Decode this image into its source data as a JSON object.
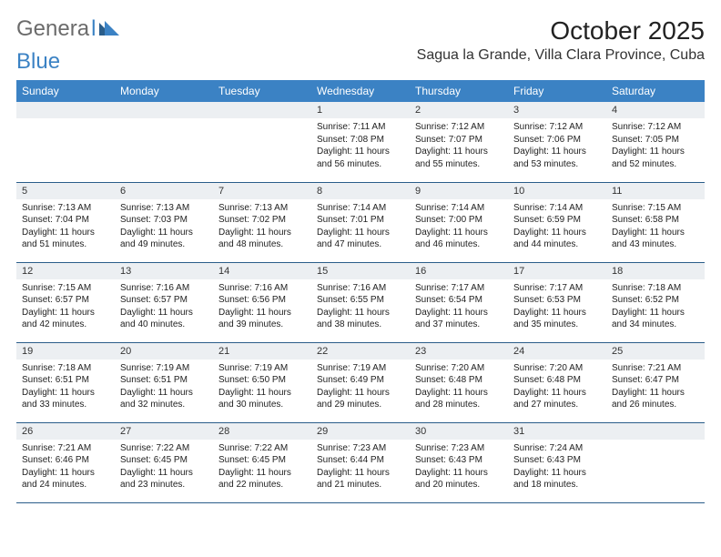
{
  "logo": {
    "part1": "Genera",
    "part_l": "l",
    "part2": "Blue"
  },
  "title": "October 2025",
  "location": "Sagua la Grande, Villa Clara Province, Cuba",
  "colors": {
    "header_bg": "#3b82c4",
    "header_text": "#ffffff",
    "daynum_bg": "#eceff2",
    "row_border": "#2a5d8a",
    "logo_gray": "#6b6b6b",
    "logo_blue": "#3b82c4",
    "page_bg": "#ffffff",
    "body_text": "#222222"
  },
  "day_headers": [
    "Sunday",
    "Monday",
    "Tuesday",
    "Wednesday",
    "Thursday",
    "Friday",
    "Saturday"
  ],
  "weeks": [
    [
      null,
      null,
      null,
      {
        "n": "1",
        "sr": "7:11 AM",
        "ss": "7:08 PM",
        "dl": "11 hours and 56 minutes."
      },
      {
        "n": "2",
        "sr": "7:12 AM",
        "ss": "7:07 PM",
        "dl": "11 hours and 55 minutes."
      },
      {
        "n": "3",
        "sr": "7:12 AM",
        "ss": "7:06 PM",
        "dl": "11 hours and 53 minutes."
      },
      {
        "n": "4",
        "sr": "7:12 AM",
        "ss": "7:05 PM",
        "dl": "11 hours and 52 minutes."
      }
    ],
    [
      {
        "n": "5",
        "sr": "7:13 AM",
        "ss": "7:04 PM",
        "dl": "11 hours and 51 minutes."
      },
      {
        "n": "6",
        "sr": "7:13 AM",
        "ss": "7:03 PM",
        "dl": "11 hours and 49 minutes."
      },
      {
        "n": "7",
        "sr": "7:13 AM",
        "ss": "7:02 PM",
        "dl": "11 hours and 48 minutes."
      },
      {
        "n": "8",
        "sr": "7:14 AM",
        "ss": "7:01 PM",
        "dl": "11 hours and 47 minutes."
      },
      {
        "n": "9",
        "sr": "7:14 AM",
        "ss": "7:00 PM",
        "dl": "11 hours and 46 minutes."
      },
      {
        "n": "10",
        "sr": "7:14 AM",
        "ss": "6:59 PM",
        "dl": "11 hours and 44 minutes."
      },
      {
        "n": "11",
        "sr": "7:15 AM",
        "ss": "6:58 PM",
        "dl": "11 hours and 43 minutes."
      }
    ],
    [
      {
        "n": "12",
        "sr": "7:15 AM",
        "ss": "6:57 PM",
        "dl": "11 hours and 42 minutes."
      },
      {
        "n": "13",
        "sr": "7:16 AM",
        "ss": "6:57 PM",
        "dl": "11 hours and 40 minutes."
      },
      {
        "n": "14",
        "sr": "7:16 AM",
        "ss": "6:56 PM",
        "dl": "11 hours and 39 minutes."
      },
      {
        "n": "15",
        "sr": "7:16 AM",
        "ss": "6:55 PM",
        "dl": "11 hours and 38 minutes."
      },
      {
        "n": "16",
        "sr": "7:17 AM",
        "ss": "6:54 PM",
        "dl": "11 hours and 37 minutes."
      },
      {
        "n": "17",
        "sr": "7:17 AM",
        "ss": "6:53 PM",
        "dl": "11 hours and 35 minutes."
      },
      {
        "n": "18",
        "sr": "7:18 AM",
        "ss": "6:52 PM",
        "dl": "11 hours and 34 minutes."
      }
    ],
    [
      {
        "n": "19",
        "sr": "7:18 AM",
        "ss": "6:51 PM",
        "dl": "11 hours and 33 minutes."
      },
      {
        "n": "20",
        "sr": "7:19 AM",
        "ss": "6:51 PM",
        "dl": "11 hours and 32 minutes."
      },
      {
        "n": "21",
        "sr": "7:19 AM",
        "ss": "6:50 PM",
        "dl": "11 hours and 30 minutes."
      },
      {
        "n": "22",
        "sr": "7:19 AM",
        "ss": "6:49 PM",
        "dl": "11 hours and 29 minutes."
      },
      {
        "n": "23",
        "sr": "7:20 AM",
        "ss": "6:48 PM",
        "dl": "11 hours and 28 minutes."
      },
      {
        "n": "24",
        "sr": "7:20 AM",
        "ss": "6:48 PM",
        "dl": "11 hours and 27 minutes."
      },
      {
        "n": "25",
        "sr": "7:21 AM",
        "ss": "6:47 PM",
        "dl": "11 hours and 26 minutes."
      }
    ],
    [
      {
        "n": "26",
        "sr": "7:21 AM",
        "ss": "6:46 PM",
        "dl": "11 hours and 24 minutes."
      },
      {
        "n": "27",
        "sr": "7:22 AM",
        "ss": "6:45 PM",
        "dl": "11 hours and 23 minutes."
      },
      {
        "n": "28",
        "sr": "7:22 AM",
        "ss": "6:45 PM",
        "dl": "11 hours and 22 minutes."
      },
      {
        "n": "29",
        "sr": "7:23 AM",
        "ss": "6:44 PM",
        "dl": "11 hours and 21 minutes."
      },
      {
        "n": "30",
        "sr": "7:23 AM",
        "ss": "6:43 PM",
        "dl": "11 hours and 20 minutes."
      },
      {
        "n": "31",
        "sr": "7:24 AM",
        "ss": "6:43 PM",
        "dl": "11 hours and 18 minutes."
      },
      null
    ]
  ],
  "labels": {
    "sunrise": "Sunrise:",
    "sunset": "Sunset:",
    "daylight": "Daylight:"
  }
}
